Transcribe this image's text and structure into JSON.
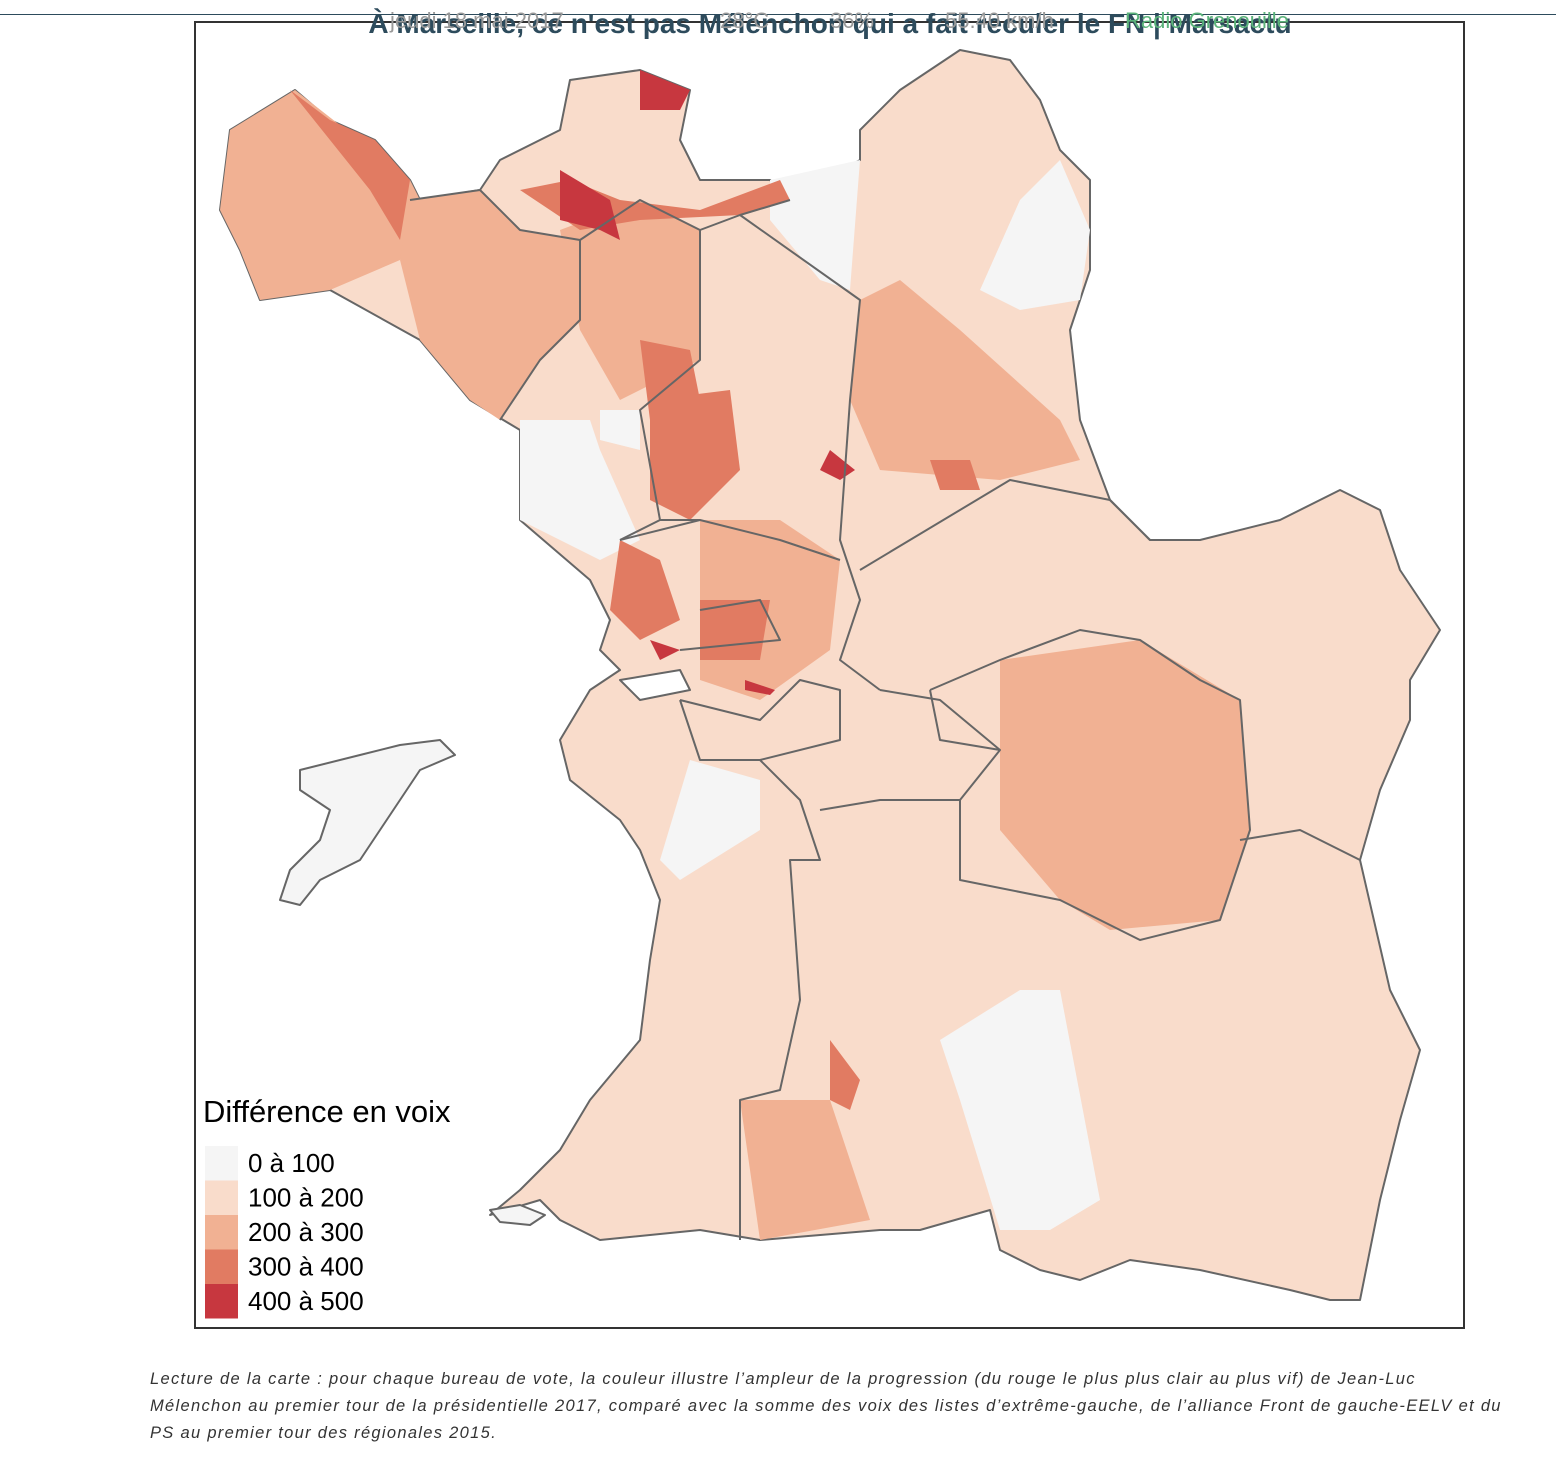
{
  "header": {
    "title": "À Marseille, ce n'est pas Mélenchon qui a fait reculer le FN | Marsactu",
    "date": "jeudi 18 mai 2017",
    "temperature": "28°C",
    "humidity": "36%",
    "wind": "55.40 km/h",
    "radio": "Radio Grenouille"
  },
  "map": {
    "legend": {
      "title": "Différence en voix",
      "items": [
        {
          "label": "0 à 100",
          "color": "#f5f5f5"
        },
        {
          "label": "100 à 200",
          "color": "#f9dccb"
        },
        {
          "label": "200 à 300",
          "color": "#f1b193"
        },
        {
          "label": "300 à 400",
          "color": "#e17b62"
        },
        {
          "label": "400 à 500",
          "color": "#c7373f"
        }
      ]
    }
  },
  "caption": "Lecture de la carte : pour chaque bureau de vote, la couleur illustre l’ampleur de la progression (du rouge le plus plus clair au plus vif) de Jean-Luc Mélenchon au premier tour de la présidentielle 2017, comparé avec la somme des voix des listes d’extrême-gauche, de l’alliance Front de gauche-EELV et du PS au premier tour des régionales 2015."
}
